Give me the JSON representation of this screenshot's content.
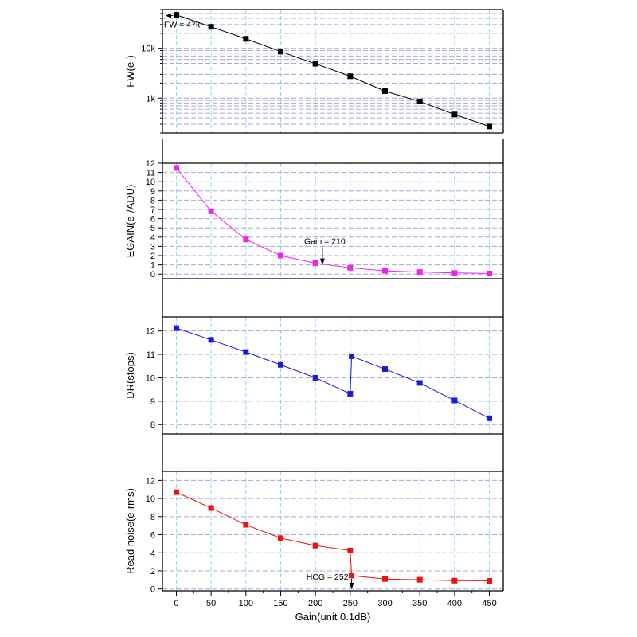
{
  "chart_data": [
    {
      "type": "line",
      "ylabel": "FW(e-)",
      "yscale": "log",
      "ylim": [
        200,
        60000
      ],
      "yticks": [
        {
          "value": 1000,
          "label": "1k"
        },
        {
          "value": 10000,
          "label": "10k"
        }
      ],
      "marker": "square",
      "color": "#000000",
      "x": [
        0,
        50,
        100,
        150,
        200,
        250,
        300,
        350,
        400,
        450
      ],
      "y": [
        47000,
        27000,
        15500,
        8600,
        4900,
        2750,
        1380,
        860,
        470,
        270
      ],
      "annotation": {
        "text": "FW = 47k",
        "x": 0,
        "y": 47000
      }
    },
    {
      "type": "line",
      "ylabel": "EGAIN(e-/ADU)",
      "ylim": [
        -0.5,
        12
      ],
      "yticks": [
        0,
        1,
        2,
        3,
        4,
        5,
        6,
        7,
        8,
        9,
        10,
        11,
        12
      ],
      "marker": "square",
      "color": "#ee22ee",
      "x": [
        0,
        50,
        100,
        150,
        200,
        250,
        300,
        350,
        400,
        450
      ],
      "y": [
        11.5,
        6.8,
        3.75,
        2.0,
        1.18,
        0.68,
        0.35,
        0.22,
        0.12,
        0.07
      ],
      "annotation": {
        "text": "Gain = 210",
        "x": 210,
        "y": 1.0
      }
    },
    {
      "type": "line",
      "ylabel": "DR(stops)",
      "ylim": [
        7.6,
        12.6
      ],
      "yticks": [
        8,
        9,
        10,
        11,
        12
      ],
      "marker": "square",
      "color": "#1a1add",
      "x": [
        0,
        50,
        100,
        150,
        200,
        250,
        252,
        300,
        350,
        400,
        450
      ],
      "y": [
        12.12,
        11.62,
        11.1,
        10.55,
        10.0,
        9.32,
        10.92,
        10.37,
        9.78,
        9.03,
        8.27
      ]
    },
    {
      "type": "line",
      "ylabel": "Read noise(e-rms)",
      "xlabel": "Gain(unit 0.1dB)",
      "xlim": [
        -20,
        470
      ],
      "xticks": [
        0,
        50,
        100,
        150,
        200,
        250,
        300,
        350,
        400,
        450
      ],
      "ylim": [
        -0.2,
        13
      ],
      "yticks": [
        0,
        2,
        4,
        6,
        8,
        10,
        12
      ],
      "marker": "square",
      "color": "#ee1111",
      "x": [
        0,
        50,
        100,
        150,
        200,
        250,
        252,
        300,
        350,
        400,
        450
      ],
      "y": [
        10.7,
        8.95,
        7.1,
        5.62,
        4.8,
        4.25,
        1.48,
        1.1,
        1.02,
        0.92,
        0.9
      ],
      "annotation": {
        "text": "HCG = 252",
        "x": 252,
        "y": 0
      }
    }
  ]
}
